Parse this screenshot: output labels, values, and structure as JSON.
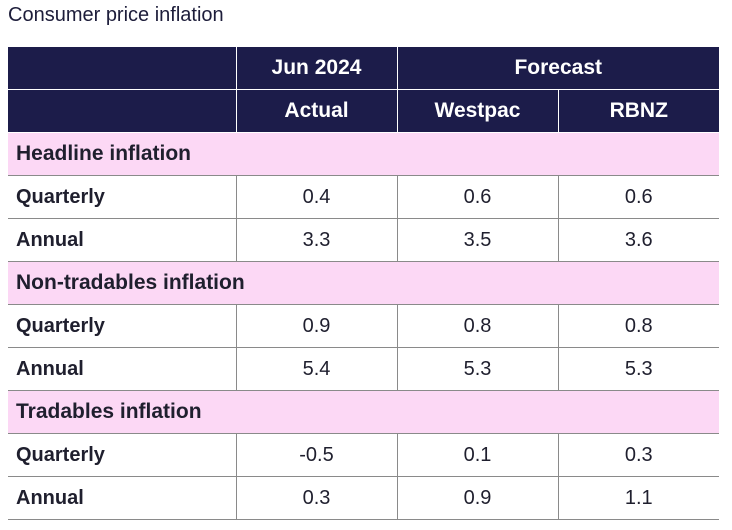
{
  "title": "Consumer price inflation",
  "header": {
    "date": "Jun 2024",
    "forecast": "Forecast",
    "actual": "Actual",
    "westpac": "Westpac",
    "rbnz": "RBNZ"
  },
  "sections": [
    {
      "name": "Headline inflation",
      "rows": [
        {
          "label": "Quarterly",
          "actual": "0.4",
          "westpac": "0.6",
          "rbnz": "0.6"
        },
        {
          "label": "Annual",
          "actual": "3.3",
          "westpac": "3.5",
          "rbnz": "3.6"
        }
      ]
    },
    {
      "name": "Non-tradables inflation",
      "rows": [
        {
          "label": "Quarterly",
          "actual": "0.9",
          "westpac": "0.8",
          "rbnz": "0.8"
        },
        {
          "label": "Annual",
          "actual": "5.4",
          "westpac": "5.3",
          "rbnz": "5.3"
        }
      ]
    },
    {
      "name": "Tradables inflation",
      "rows": [
        {
          "label": "Quarterly",
          "actual": "-0.5",
          "westpac": "0.1",
          "rbnz": "0.3"
        },
        {
          "label": "Annual",
          "actual": "0.3",
          "westpac": "0.9",
          "rbnz": "1.1"
        }
      ]
    }
  ],
  "chart_data": {
    "type": "table",
    "title": "Consumer price inflation",
    "columns": [
      "Actual",
      "Westpac",
      "RBNZ"
    ],
    "column_groups": [
      {
        "label": "Jun 2024",
        "columns": [
          "Actual"
        ]
      },
      {
        "label": "Forecast",
        "columns": [
          "Westpac",
          "RBNZ"
        ]
      }
    ],
    "sections": [
      {
        "name": "Headline inflation",
        "rows": [
          {
            "label": "Quarterly",
            "values": [
              0.4,
              0.6,
              0.6
            ]
          },
          {
            "label": "Annual",
            "values": [
              3.3,
              3.5,
              3.6
            ]
          }
        ]
      },
      {
        "name": "Non-tradables inflation",
        "rows": [
          {
            "label": "Quarterly",
            "values": [
              0.9,
              0.8,
              0.8
            ]
          },
          {
            "label": "Annual",
            "values": [
              5.4,
              5.3,
              5.3
            ]
          }
        ]
      },
      {
        "name": "Tradables inflation",
        "rows": [
          {
            "label": "Quarterly",
            "values": [
              -0.5,
              0.1,
              0.3
            ]
          },
          {
            "label": "Annual",
            "values": [
              0.3,
              0.9,
              1.1
            ]
          }
        ]
      }
    ]
  },
  "colors": {
    "header_bg": "#1c1c4a",
    "section_bg": "#fcd8f5"
  }
}
